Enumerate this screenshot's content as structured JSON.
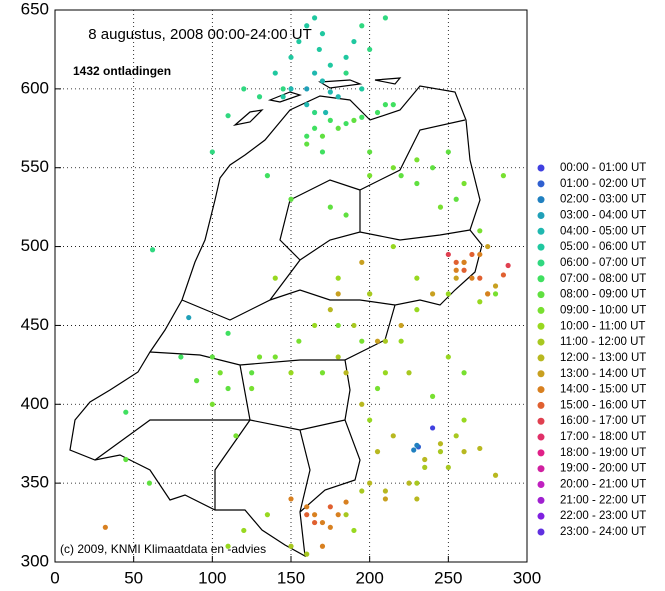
{
  "chart_data": {
    "type": "scatter",
    "title": "8 augustus, 2008    00:00-24:00 UT",
    "subtitle": "1432 ontladingen",
    "annotation": "(c) 2009, KNMI Klimaatdata en -advies",
    "xlim": [
      0,
      300
    ],
    "ylim": [
      300,
      650
    ],
    "xticks": [
      0,
      50,
      100,
      150,
      200,
      250,
      300
    ],
    "yticks": [
      300,
      350,
      400,
      450,
      500,
      550,
      600,
      650
    ],
    "grid": true,
    "legend": "right",
    "series": [
      {
        "name": "00:00 - 01:00 UT",
        "color": "#4040e0",
        "x": [
          240
        ],
        "values": [
          385
        ]
      },
      {
        "name": "01:00 - 02:00 UT",
        "color": "#3060d0",
        "x": [
          231
        ],
        "values": [
          373
        ]
      },
      {
        "name": "02:00 - 03:00 UT",
        "color": "#2080c0",
        "x": [
          228,
          230
        ],
        "values": [
          371,
          374
        ]
      },
      {
        "name": "03:00 - 04:00 UT",
        "color": "#20a0b8",
        "x": [
          85,
          160
        ],
        "values": [
          455,
          600
        ]
      },
      {
        "name": "04:00 - 05:00 UT",
        "color": "#20b8b0",
        "x": [
          150,
          165,
          170,
          175,
          180,
          160,
          172
        ],
        "values": [
          600,
          610,
          605,
          598,
          595,
          590,
          585
        ]
      },
      {
        "name": "05:00 - 06:00 UT",
        "color": "#20c8a0",
        "x": [
          140,
          150,
          155,
          160,
          168,
          175,
          185,
          190,
          195,
          170,
          165,
          145
        ],
        "values": [
          610,
          620,
          630,
          640,
          625,
          615,
          620,
          630,
          600,
          635,
          645,
          595
        ]
      },
      {
        "name": "06:00 - 07:00 UT",
        "color": "#30d880",
        "x": [
          130,
          145,
          165,
          185,
          200,
          210,
          120,
          110,
          62,
          195,
          100
        ],
        "values": [
          595,
          600,
          585,
          610,
          625,
          645,
          600,
          583,
          498,
          640,
          560
        ]
      },
      {
        "name": "07:00 - 08:00 UT",
        "color": "#40e060",
        "x": [
          165,
          175,
          185,
          195,
          205,
          210,
          215,
          170,
          160,
          45,
          80,
          110,
          135
        ],
        "values": [
          575,
          580,
          578,
          582,
          585,
          590,
          590,
          560,
          570,
          395,
          430,
          445,
          545
        ]
      },
      {
        "name": "08:00 - 09:00 UT",
        "color": "#60e040",
        "x": [
          160,
          170,
          180,
          190,
          200,
          220,
          230,
          240,
          250,
          255,
          185,
          150,
          100,
          110,
          125,
          90,
          175,
          60,
          45
        ],
        "values": [
          565,
          570,
          575,
          580,
          560,
          545,
          540,
          550,
          560,
          530,
          520,
          530,
          430,
          410,
          420,
          415,
          525,
          350,
          365
        ]
      },
      {
        "name": "09:00 - 10:00 UT",
        "color": "#78e030",
        "x": [
          200,
          215,
          230,
          245,
          260,
          270,
          280,
          285,
          195,
          170,
          155,
          140,
          125,
          100,
          105,
          115,
          130,
          180,
          205,
          240,
          260
        ],
        "values": [
          545,
          550,
          555,
          525,
          540,
          510,
          470,
          545,
          440,
          420,
          440,
          430,
          410,
          400,
          420,
          380,
          430,
          450,
          410,
          405,
          420
        ]
      },
      {
        "name": "10:00 - 11:00 UT",
        "color": "#98d820",
        "x": [
          215,
          230,
          250,
          270,
          200,
          180,
          165,
          150,
          120,
          110,
          135,
          190,
          210,
          230,
          250,
          220,
          200,
          260,
          275,
          140
        ],
        "values": [
          500,
          480,
          470,
          465,
          470,
          480,
          450,
          420,
          320,
          310,
          330,
          320,
          420,
          460,
          430,
          440,
          390,
          390,
          470,
          480
        ]
      },
      {
        "name": "11:00 - 12:00 UT",
        "color": "#a8c820",
        "x": [
          180,
          190,
          200,
          210,
          225,
          235,
          245,
          255,
          185,
          195,
          230,
          250,
          150,
          160
        ],
        "values": [
          430,
          450,
          470,
          440,
          420,
          360,
          370,
          380,
          330,
          345,
          350,
          360,
          310,
          305
        ]
      },
      {
        "name": "12:00 - 13:00 UT",
        "color": "#b8b820",
        "x": [
          175,
          185,
          195,
          205,
          215,
          225,
          235,
          245,
          260,
          270,
          280,
          200,
          210,
          230
        ],
        "values": [
          460,
          420,
          400,
          370,
          380,
          350,
          365,
          375,
          370,
          372,
          355,
          350,
          345,
          340
        ]
      },
      {
        "name": "13:00 - 14:00 UT",
        "color": "#c8a020",
        "x": [
          180,
          195,
          205,
          220,
          240,
          255,
          260,
          275,
          280,
          210
        ],
        "values": [
          470,
          490,
          440,
          450,
          470,
          480,
          490,
          500,
          475,
          340
        ]
      },
      {
        "name": "14:00 - 15:00 UT",
        "color": "#d88020",
        "x": [
          150,
          160,
          165,
          170,
          175,
          180,
          255,
          260,
          265,
          270,
          275,
          170,
          185,
          32
        ],
        "values": [
          340,
          335,
          330,
          325,
          322,
          330,
          485,
          490,
          480,
          495,
          470,
          310,
          338,
          322
        ]
      },
      {
        "name": "15:00 - 16:00 UT",
        "color": "#e06030",
        "x": [
          255,
          260,
          265,
          270,
          285,
          160,
          165,
          175
        ],
        "values": [
          490,
          485,
          495,
          480,
          482,
          330,
          325,
          335
        ]
      },
      {
        "name": "16:00 - 17:00 UT",
        "color": "#e04050",
        "x": [
          288,
          250
        ],
        "values": [
          488,
          495
        ]
      },
      {
        "name": "17:00 - 18:00 UT",
        "color": "#e03068",
        "x": [],
        "values": []
      },
      {
        "name": "18:00 - 19:00 UT",
        "color": "#e02088",
        "x": [],
        "values": []
      },
      {
        "name": "19:00 - 20:00 UT",
        "color": "#d020a0",
        "x": [],
        "values": []
      },
      {
        "name": "20:00 - 21:00 UT",
        "color": "#c020c0",
        "x": [],
        "values": []
      },
      {
        "name": "21:00 - 22:00 UT",
        "color": "#a020d0",
        "x": [],
        "values": []
      },
      {
        "name": "22:00 - 23:00 UT",
        "color": "#8020e0",
        "x": [],
        "values": []
      },
      {
        "name": "23:00 - 24:00 UT",
        "color": "#6030e0",
        "x": [],
        "values": []
      }
    ]
  }
}
